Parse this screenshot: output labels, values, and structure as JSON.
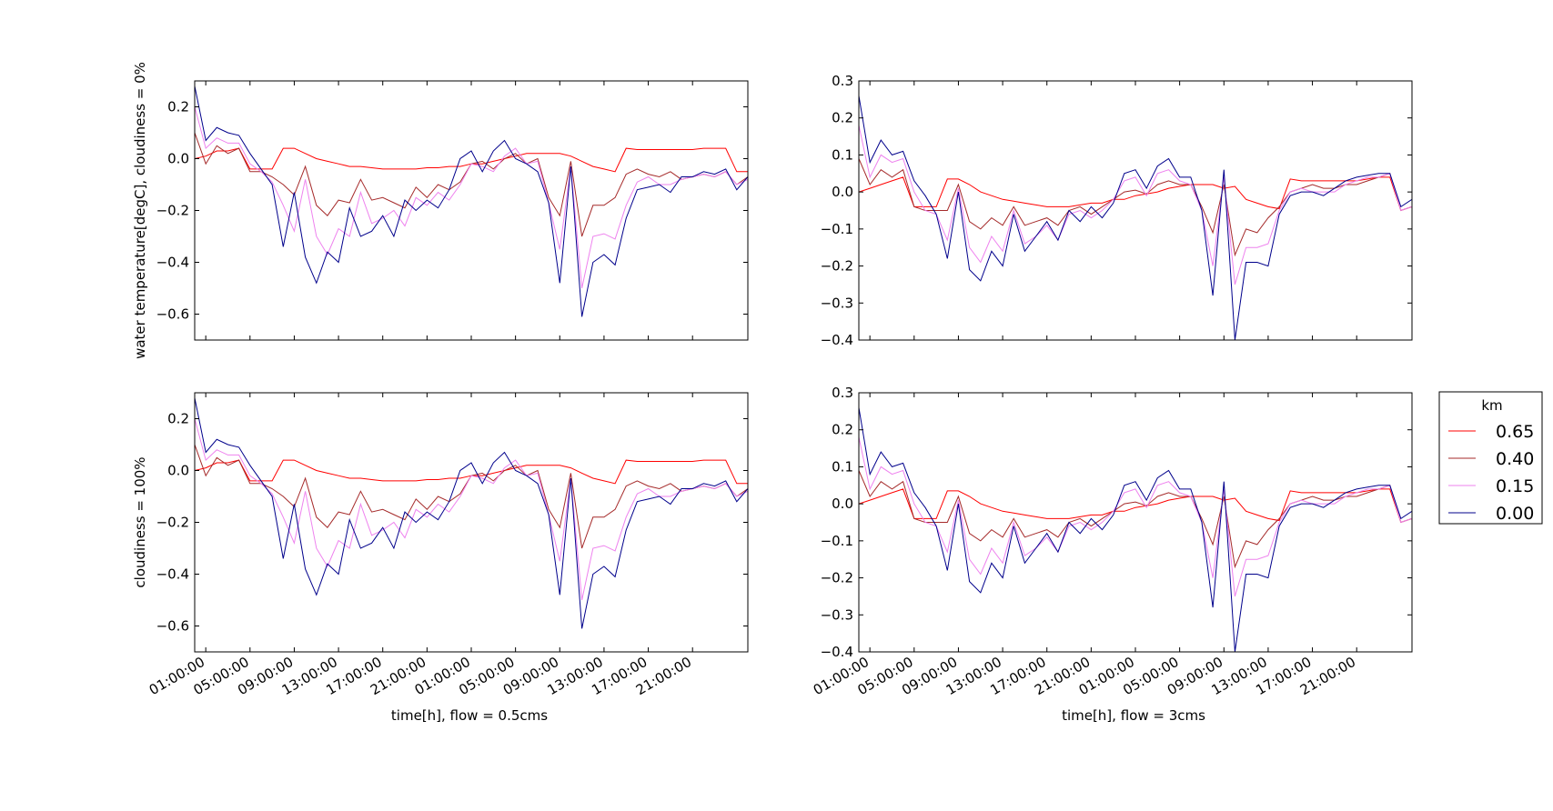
{
  "figure": {
    "legend": {
      "title": "km",
      "entries": [
        {
          "label": "0.65",
          "color": "#ff0000"
        },
        {
          "label": "0.40",
          "color": "#a52a2a"
        },
        {
          "label": "0.15",
          "color": "#ee82ee"
        },
        {
          "label": "0.00",
          "color": "#00008b"
        }
      ]
    }
  },
  "chart_data": [
    {
      "type": "line",
      "ylabel": "water temperature[degC], cloudiness = 0%",
      "xlabel": "",
      "ylim": [
        -0.7,
        0.3
      ],
      "yticks": [
        -0.6,
        -0.4,
        -0.2,
        0.0,
        0.2
      ],
      "ytick_labels": [
        "−0.6",
        "−0.4",
        "−0.2",
        "0.0",
        "0.2"
      ],
      "xticks_shown": false,
      "series": [
        {
          "name": "0.65",
          "color": "#ff0000",
          "values": [
            0.0,
            0.01,
            0.03,
            0.03,
            0.04,
            -0.04,
            -0.04,
            -0.04,
            0.04,
            0.04,
            0.02,
            0.0,
            -0.01,
            -0.02,
            -0.03,
            -0.03,
            -0.035,
            -0.04,
            -0.04,
            -0.04,
            -0.04,
            -0.035,
            -0.035,
            -0.03,
            -0.03,
            -0.02,
            -0.02,
            -0.01,
            0.0,
            0.01,
            0.02,
            0.02,
            0.02,
            0.02,
            0.01,
            -0.01,
            -0.03,
            -0.04,
            -0.05,
            0.04,
            0.035,
            0.035,
            0.035,
            0.035,
            0.035,
            0.035,
            0.04,
            0.04,
            0.04,
            -0.05,
            -0.05
          ]
        },
        {
          "name": "0.40",
          "color": "#a52a2a",
          "values": [
            0.1,
            -0.02,
            0.05,
            0.02,
            0.04,
            -0.05,
            -0.05,
            -0.07,
            -0.1,
            -0.14,
            -0.03,
            -0.18,
            -0.22,
            -0.16,
            -0.17,
            -0.08,
            -0.16,
            -0.15,
            -0.17,
            -0.19,
            -0.11,
            -0.15,
            -0.1,
            -0.12,
            -0.09,
            -0.02,
            -0.01,
            -0.04,
            0.0,
            0.02,
            -0.02,
            0.0,
            -0.15,
            -0.22,
            -0.01,
            -0.3,
            -0.18,
            -0.18,
            -0.15,
            -0.06,
            -0.04,
            -0.06,
            -0.07,
            -0.05,
            -0.08,
            -0.07,
            -0.06,
            -0.07,
            -0.05,
            -0.1,
            -0.07
          ]
        },
        {
          "name": "0.15",
          "color": "#ee82ee",
          "values": [
            0.2,
            0.04,
            0.08,
            0.06,
            0.06,
            -0.02,
            -0.05,
            -0.09,
            -0.18,
            -0.28,
            -0.08,
            -0.3,
            -0.37,
            -0.27,
            -0.3,
            -0.13,
            -0.25,
            -0.23,
            -0.2,
            -0.26,
            -0.15,
            -0.18,
            -0.13,
            -0.16,
            -0.1,
            -0.02,
            -0.03,
            -0.05,
            0.01,
            0.04,
            -0.02,
            -0.01,
            -0.17,
            -0.35,
            -0.03,
            -0.5,
            -0.3,
            -0.29,
            -0.31,
            -0.18,
            -0.09,
            -0.07,
            -0.1,
            -0.1,
            -0.08,
            -0.07,
            -0.06,
            -0.07,
            -0.05,
            -0.1,
            -0.08
          ]
        },
        {
          "name": "0.00",
          "color": "#00008b",
          "values": [
            0.28,
            0.07,
            0.12,
            0.1,
            0.09,
            0.02,
            -0.04,
            -0.1,
            -0.34,
            -0.13,
            -0.38,
            -0.48,
            -0.36,
            -0.4,
            -0.19,
            -0.3,
            -0.28,
            -0.22,
            -0.3,
            -0.16,
            -0.2,
            -0.16,
            -0.19,
            -0.12,
            0.0,
            0.03,
            -0.05,
            0.03,
            0.07,
            0.0,
            -0.02,
            -0.05,
            -0.17,
            -0.48,
            -0.03,
            -0.61,
            -0.4,
            -0.37,
            -0.41,
            -0.23,
            -0.12,
            -0.11,
            -0.1,
            -0.13,
            -0.07,
            -0.07,
            -0.05,
            -0.06,
            -0.04,
            -0.12,
            -0.07
          ]
        }
      ]
    },
    {
      "type": "line",
      "ylabel": "",
      "xlabel": "",
      "ylim": [
        -0.4,
        0.3
      ],
      "yticks": [
        -0.4,
        -0.3,
        -0.2,
        -0.1,
        0.0,
        0.1,
        0.2,
        0.3
      ],
      "ytick_labels": [
        "−0.4",
        "−0.3",
        "−0.2",
        "−0.1",
        "0.0",
        "0.1",
        "0.2",
        "0.3"
      ],
      "xticks_shown": false,
      "series": [
        {
          "name": "0.65",
          "color": "#ff0000",
          "values": [
            0.0,
            0.01,
            0.02,
            0.03,
            0.04,
            -0.04,
            -0.04,
            -0.04,
            0.035,
            0.035,
            0.02,
            0.0,
            -0.01,
            -0.02,
            -0.025,
            -0.03,
            -0.035,
            -0.04,
            -0.04,
            -0.04,
            -0.035,
            -0.03,
            -0.03,
            -0.02,
            -0.02,
            -0.01,
            -0.005,
            0.0,
            0.01,
            0.015,
            0.02,
            0.02,
            0.02,
            0.01,
            0.015,
            -0.02,
            -0.03,
            -0.04,
            -0.045,
            0.035,
            0.03,
            0.03,
            0.03,
            0.03,
            0.03,
            0.03,
            0.035,
            0.04,
            0.04,
            -0.05,
            -0.04
          ]
        },
        {
          "name": "0.40",
          "color": "#a52a2a",
          "values": [
            0.09,
            0.02,
            0.06,
            0.04,
            0.06,
            -0.04,
            -0.05,
            -0.05,
            -0.05,
            0.02,
            -0.08,
            -0.1,
            -0.07,
            -0.09,
            -0.04,
            -0.09,
            -0.08,
            -0.07,
            -0.09,
            -0.05,
            -0.04,
            -0.06,
            -0.04,
            -0.02,
            0.0,
            0.005,
            -0.005,
            0.02,
            0.03,
            0.02,
            0.02,
            -0.04,
            -0.11,
            0.02,
            -0.17,
            -0.1,
            -0.11,
            -0.07,
            -0.04,
            0.0,
            0.01,
            0.02,
            0.01,
            0.01,
            0.02,
            0.02,
            0.03,
            0.04,
            0.05,
            -0.05,
            -0.04
          ]
        },
        {
          "name": "0.15",
          "color": "#ee82ee",
          "values": [
            0.18,
            0.04,
            0.1,
            0.08,
            0.09,
            0.0,
            -0.05,
            -0.06,
            -0.13,
            0.01,
            -0.15,
            -0.19,
            -0.12,
            -0.16,
            -0.05,
            -0.14,
            -0.12,
            -0.09,
            -0.13,
            -0.06,
            -0.05,
            -0.07,
            -0.05,
            -0.02,
            0.03,
            0.04,
            -0.01,
            0.05,
            0.06,
            0.03,
            0.02,
            -0.05,
            -0.2,
            0.04,
            -0.25,
            -0.15,
            -0.15,
            -0.14,
            -0.05,
            0.0,
            0.01,
            0.0,
            0.0,
            0.0,
            0.02,
            0.03,
            0.04,
            0.04,
            0.05,
            -0.05,
            -0.04
          ]
        },
        {
          "name": "0.00",
          "color": "#00008b",
          "values": [
            0.26,
            0.08,
            0.14,
            0.1,
            0.11,
            0.03,
            -0.01,
            -0.06,
            -0.18,
            0.0,
            -0.21,
            -0.24,
            -0.16,
            -0.2,
            -0.06,
            -0.16,
            -0.12,
            -0.08,
            -0.13,
            -0.05,
            -0.08,
            -0.04,
            -0.07,
            -0.03,
            0.05,
            0.06,
            0.01,
            0.07,
            0.09,
            0.04,
            0.04,
            -0.05,
            -0.28,
            0.06,
            -0.4,
            -0.19,
            -0.19,
            -0.2,
            -0.06,
            -0.01,
            0.0,
            0.0,
            -0.01,
            0.01,
            0.03,
            0.04,
            0.045,
            0.05,
            0.05,
            -0.04,
            -0.02
          ]
        }
      ]
    },
    {
      "type": "line",
      "ylabel": "cloudiness = 100%",
      "xlabel": "time[h], flow = 0.5cms",
      "ylim": [
        -0.7,
        0.3
      ],
      "yticks": [
        -0.6,
        -0.4,
        -0.2,
        0.0,
        0.2
      ],
      "ytick_labels": [
        "−0.6",
        "−0.4",
        "−0.2",
        "0.0",
        "0.2"
      ],
      "xticks_shown": true,
      "series": [
        {
          "name": "0.65",
          "color": "#ff0000",
          "values": [
            0.0,
            0.01,
            0.03,
            0.03,
            0.04,
            -0.04,
            -0.04,
            -0.04,
            0.04,
            0.04,
            0.02,
            0.0,
            -0.01,
            -0.02,
            -0.03,
            -0.03,
            -0.035,
            -0.04,
            -0.04,
            -0.04,
            -0.04,
            -0.035,
            -0.035,
            -0.03,
            -0.03,
            -0.02,
            -0.02,
            -0.01,
            0.0,
            0.01,
            0.02,
            0.02,
            0.02,
            0.02,
            0.01,
            -0.01,
            -0.03,
            -0.04,
            -0.05,
            0.04,
            0.035,
            0.035,
            0.035,
            0.035,
            0.035,
            0.035,
            0.04,
            0.04,
            0.04,
            -0.05,
            -0.05
          ]
        },
        {
          "name": "0.40",
          "color": "#a52a2a",
          "values": [
            0.1,
            -0.02,
            0.05,
            0.02,
            0.04,
            -0.05,
            -0.05,
            -0.07,
            -0.1,
            -0.14,
            -0.03,
            -0.18,
            -0.22,
            -0.16,
            -0.17,
            -0.08,
            -0.16,
            -0.15,
            -0.17,
            -0.19,
            -0.11,
            -0.15,
            -0.1,
            -0.12,
            -0.09,
            -0.02,
            -0.01,
            -0.04,
            0.0,
            0.02,
            -0.02,
            0.0,
            -0.15,
            -0.22,
            -0.01,
            -0.3,
            -0.18,
            -0.18,
            -0.15,
            -0.06,
            -0.04,
            -0.06,
            -0.07,
            -0.05,
            -0.08,
            -0.07,
            -0.06,
            -0.07,
            -0.05,
            -0.1,
            -0.07
          ]
        },
        {
          "name": "0.15",
          "color": "#ee82ee",
          "values": [
            0.2,
            0.04,
            0.08,
            0.06,
            0.06,
            -0.02,
            -0.05,
            -0.09,
            -0.18,
            -0.28,
            -0.08,
            -0.3,
            -0.37,
            -0.27,
            -0.3,
            -0.13,
            -0.25,
            -0.23,
            -0.2,
            -0.26,
            -0.15,
            -0.18,
            -0.13,
            -0.16,
            -0.1,
            -0.02,
            -0.03,
            -0.05,
            0.01,
            0.04,
            -0.02,
            -0.01,
            -0.17,
            -0.35,
            -0.03,
            -0.5,
            -0.3,
            -0.29,
            -0.31,
            -0.18,
            -0.09,
            -0.07,
            -0.1,
            -0.1,
            -0.08,
            -0.07,
            -0.06,
            -0.07,
            -0.05,
            -0.1,
            -0.08
          ]
        },
        {
          "name": "0.00",
          "color": "#00008b",
          "values": [
            0.28,
            0.07,
            0.12,
            0.1,
            0.09,
            0.02,
            -0.04,
            -0.1,
            -0.34,
            -0.13,
            -0.38,
            -0.48,
            -0.36,
            -0.4,
            -0.19,
            -0.3,
            -0.28,
            -0.22,
            -0.3,
            -0.16,
            -0.2,
            -0.16,
            -0.19,
            -0.12,
            0.0,
            0.03,
            -0.05,
            0.03,
            0.07,
            0.0,
            -0.02,
            -0.05,
            -0.17,
            -0.48,
            -0.03,
            -0.61,
            -0.4,
            -0.37,
            -0.41,
            -0.23,
            -0.12,
            -0.11,
            -0.1,
            -0.13,
            -0.07,
            -0.07,
            -0.05,
            -0.06,
            -0.04,
            -0.12,
            -0.07
          ]
        }
      ]
    },
    {
      "type": "line",
      "ylabel": "",
      "xlabel": "time[h], flow = 3cms",
      "ylim": [
        -0.4,
        0.3
      ],
      "yticks": [
        -0.4,
        -0.3,
        -0.2,
        -0.1,
        0.0,
        0.1,
        0.2,
        0.3
      ],
      "ytick_labels": [
        "−0.4",
        "−0.3",
        "−0.2",
        "−0.1",
        "0.0",
        "0.1",
        "0.2",
        "0.3"
      ],
      "xticks_shown": true,
      "series": [
        {
          "name": "0.65",
          "color": "#ff0000",
          "values": [
            0.0,
            0.01,
            0.02,
            0.03,
            0.04,
            -0.04,
            -0.04,
            -0.04,
            0.035,
            0.035,
            0.02,
            0.0,
            -0.01,
            -0.02,
            -0.025,
            -0.03,
            -0.035,
            -0.04,
            -0.04,
            -0.04,
            -0.035,
            -0.03,
            -0.03,
            -0.02,
            -0.02,
            -0.01,
            -0.005,
            0.0,
            0.01,
            0.015,
            0.02,
            0.02,
            0.02,
            0.01,
            0.015,
            -0.02,
            -0.03,
            -0.04,
            -0.045,
            0.035,
            0.03,
            0.03,
            0.03,
            0.03,
            0.03,
            0.03,
            0.035,
            0.04,
            0.04,
            -0.05,
            -0.04
          ]
        },
        {
          "name": "0.40",
          "color": "#a52a2a",
          "values": [
            0.09,
            0.02,
            0.06,
            0.04,
            0.06,
            -0.04,
            -0.05,
            -0.05,
            -0.05,
            0.02,
            -0.08,
            -0.1,
            -0.07,
            -0.09,
            -0.04,
            -0.09,
            -0.08,
            -0.07,
            -0.09,
            -0.05,
            -0.04,
            -0.06,
            -0.04,
            -0.02,
            0.0,
            0.005,
            -0.005,
            0.02,
            0.03,
            0.02,
            0.02,
            -0.04,
            -0.11,
            0.02,
            -0.17,
            -0.1,
            -0.11,
            -0.07,
            -0.04,
            0.0,
            0.01,
            0.02,
            0.01,
            0.01,
            0.02,
            0.02,
            0.03,
            0.04,
            0.05,
            -0.05,
            -0.04
          ]
        },
        {
          "name": "0.15",
          "color": "#ee82ee",
          "values": [
            0.18,
            0.04,
            0.1,
            0.08,
            0.09,
            0.0,
            -0.05,
            -0.06,
            -0.13,
            0.01,
            -0.15,
            -0.19,
            -0.12,
            -0.16,
            -0.05,
            -0.14,
            -0.12,
            -0.09,
            -0.13,
            -0.06,
            -0.05,
            -0.07,
            -0.05,
            -0.02,
            0.03,
            0.04,
            -0.01,
            0.05,
            0.06,
            0.03,
            0.02,
            -0.05,
            -0.2,
            0.04,
            -0.25,
            -0.15,
            -0.15,
            -0.14,
            -0.05,
            0.0,
            0.01,
            0.0,
            0.0,
            0.0,
            0.02,
            0.03,
            0.04,
            0.04,
            0.05,
            -0.05,
            -0.04
          ]
        },
        {
          "name": "0.00",
          "color": "#00008b",
          "values": [
            0.26,
            0.08,
            0.14,
            0.1,
            0.11,
            0.03,
            -0.01,
            -0.06,
            -0.18,
            0.0,
            -0.21,
            -0.24,
            -0.16,
            -0.2,
            -0.06,
            -0.16,
            -0.12,
            -0.08,
            -0.13,
            -0.05,
            -0.08,
            -0.04,
            -0.07,
            -0.03,
            0.05,
            0.06,
            0.01,
            0.07,
            0.09,
            0.04,
            0.04,
            -0.05,
            -0.28,
            0.06,
            -0.4,
            -0.19,
            -0.19,
            -0.2,
            -0.06,
            -0.01,
            0.0,
            0.0,
            -0.01,
            0.01,
            0.03,
            0.04,
            0.045,
            0.05,
            0.05,
            -0.04,
            -0.02
          ]
        }
      ]
    }
  ],
  "x_axis": {
    "point_count": 51,
    "tick_labels": [
      "01:00:00",
      "05:00:00",
      "09:00:00",
      "13:00:00",
      "17:00:00",
      "21:00:00",
      "01:00:00",
      "05:00:00",
      "09:00:00",
      "13:00:00",
      "17:00:00",
      "21:00:00"
    ]
  }
}
